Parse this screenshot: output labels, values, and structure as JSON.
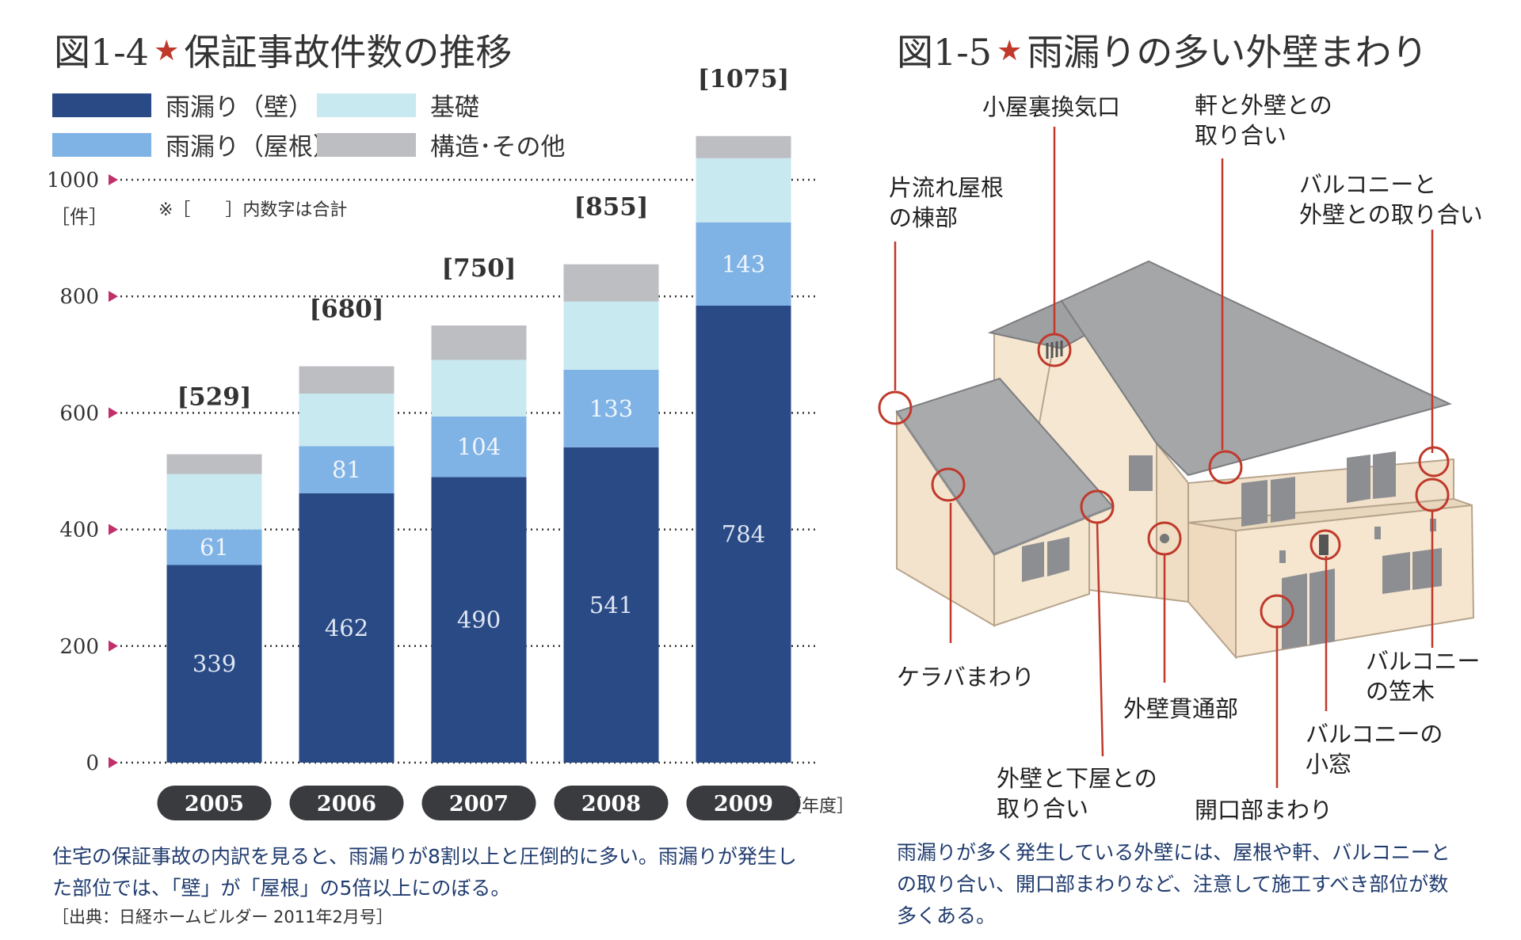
{
  "left": {
    "title_num": "図1-4",
    "title_text": "保証事故件数の推移",
    "legend": {
      "wall": "雨漏り（壁）",
      "roof": "雨漏り（屋根）",
      "foundation": "基礎",
      "structure": "構造･その他"
    },
    "unit": "［件］",
    "note": "※［　　］内数字は合計",
    "year_unit": "［年度］",
    "caption_line1": "住宅の保証事故の内訳を見ると、雨漏りが8割以上と圧倒的に多い。雨漏りが発生し",
    "caption_line2": "た部位では、「壁」が「屋根」の5倍以上にのぼる。",
    "source": "［出典：日経ホームビルダー 2011年2月号］"
  },
  "chart_data": {
    "type": "bar",
    "stacked": true,
    "categories": [
      "2005",
      "2006",
      "2007",
      "2008",
      "2009"
    ],
    "series": [
      {
        "name": "雨漏り（壁）",
        "color": "#2a4a86",
        "values": [
          339,
          462,
          490,
          541,
          784
        ]
      },
      {
        "name": "雨漏り（屋根）",
        "color": "#7fb2e5",
        "values": [
          61,
          81,
          104,
          133,
          143
        ]
      },
      {
        "name": "基礎",
        "color": "#c9e9f1",
        "values": [
          95,
          90,
          97,
          117,
          110
        ]
      },
      {
        "name": "構造･その他",
        "color": "#bcbec2",
        "values": [
          34,
          47,
          59,
          64,
          38
        ]
      }
    ],
    "totals": [
      "[529]",
      "[680]",
      "[750]",
      "[855]",
      "[1075]"
    ],
    "yticks": [
      0,
      200,
      400,
      600,
      800,
      1000
    ],
    "ylim": [
      0,
      1000
    ],
    "legend_position": "top"
  },
  "right": {
    "title_num": "図1-5",
    "title_text": "雨漏りの多い外壁まわり",
    "labels": {
      "koya": "小屋裏換気口",
      "noki1": "軒と外壁との",
      "noki2": "取り合い",
      "kata1": "片流れ屋根",
      "kata2": "の棟部",
      "balc1": "バルコニーと",
      "balc2": "外壁との取り合い",
      "kera": "ケラバまわり",
      "kanstu": "外壁貫通部",
      "geya1": "外壁と下屋との",
      "geya2": "取り合い",
      "kaiko": "開口部まわり",
      "mado1": "バルコニーの",
      "mado2": "小窓",
      "kasa1": "バルコニー",
      "kasa2": "の笠木"
    },
    "caption_line1": "雨漏りが多く発生している外壁には、屋根や軒、バルコニーと",
    "caption_line2": "の取り合い、開口部まわりなど、注意して施工すべき部位が数",
    "caption_line3": "多くある。"
  }
}
